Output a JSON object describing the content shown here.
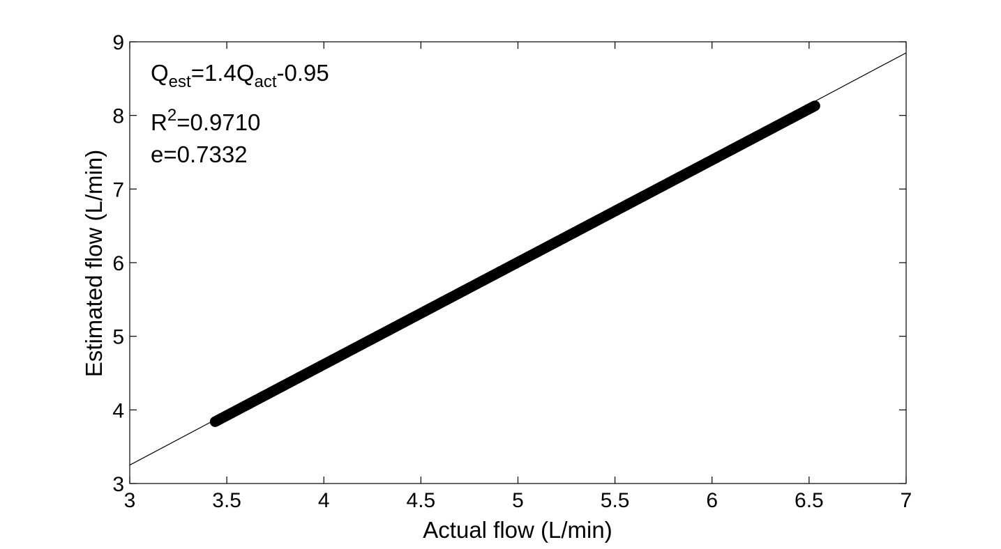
{
  "chart_data": {
    "type": "scatter",
    "xlabel": "Actual flow (L/min)",
    "ylabel": "Estimated flow (L/min)",
    "xlim": [
      3,
      7
    ],
    "ylim": [
      3,
      9
    ],
    "xticks": [
      "3",
      "3.5",
      "4",
      "4.5",
      "5",
      "5.5",
      "6",
      "6.5",
      "7"
    ],
    "yticks": [
      "3",
      "4",
      "5",
      "6",
      "7",
      "8",
      "9"
    ],
    "grid": false,
    "series": [
      {
        "marker": "circle",
        "x_range": [
          3.44,
          6.53
        ],
        "y_range": [
          3.84,
          8.13
        ]
      }
    ],
    "fit_line": {
      "slope": 1.4,
      "intercept": -0.95,
      "x_range": [
        3,
        7
      ]
    },
    "annotations": {
      "equation": {
        "q": "Q",
        "est": "est",
        "mid": "=1.4Q",
        "act": "act",
        "tail": "-0.95"
      },
      "r2": {
        "r": "R",
        "sup": "2",
        "value": "=0.9710"
      },
      "e": "e=0.7332"
    },
    "colors": {
      "marker": "#000000",
      "line": "#000000",
      "axes": "#000000",
      "background": "#ffffff"
    }
  }
}
